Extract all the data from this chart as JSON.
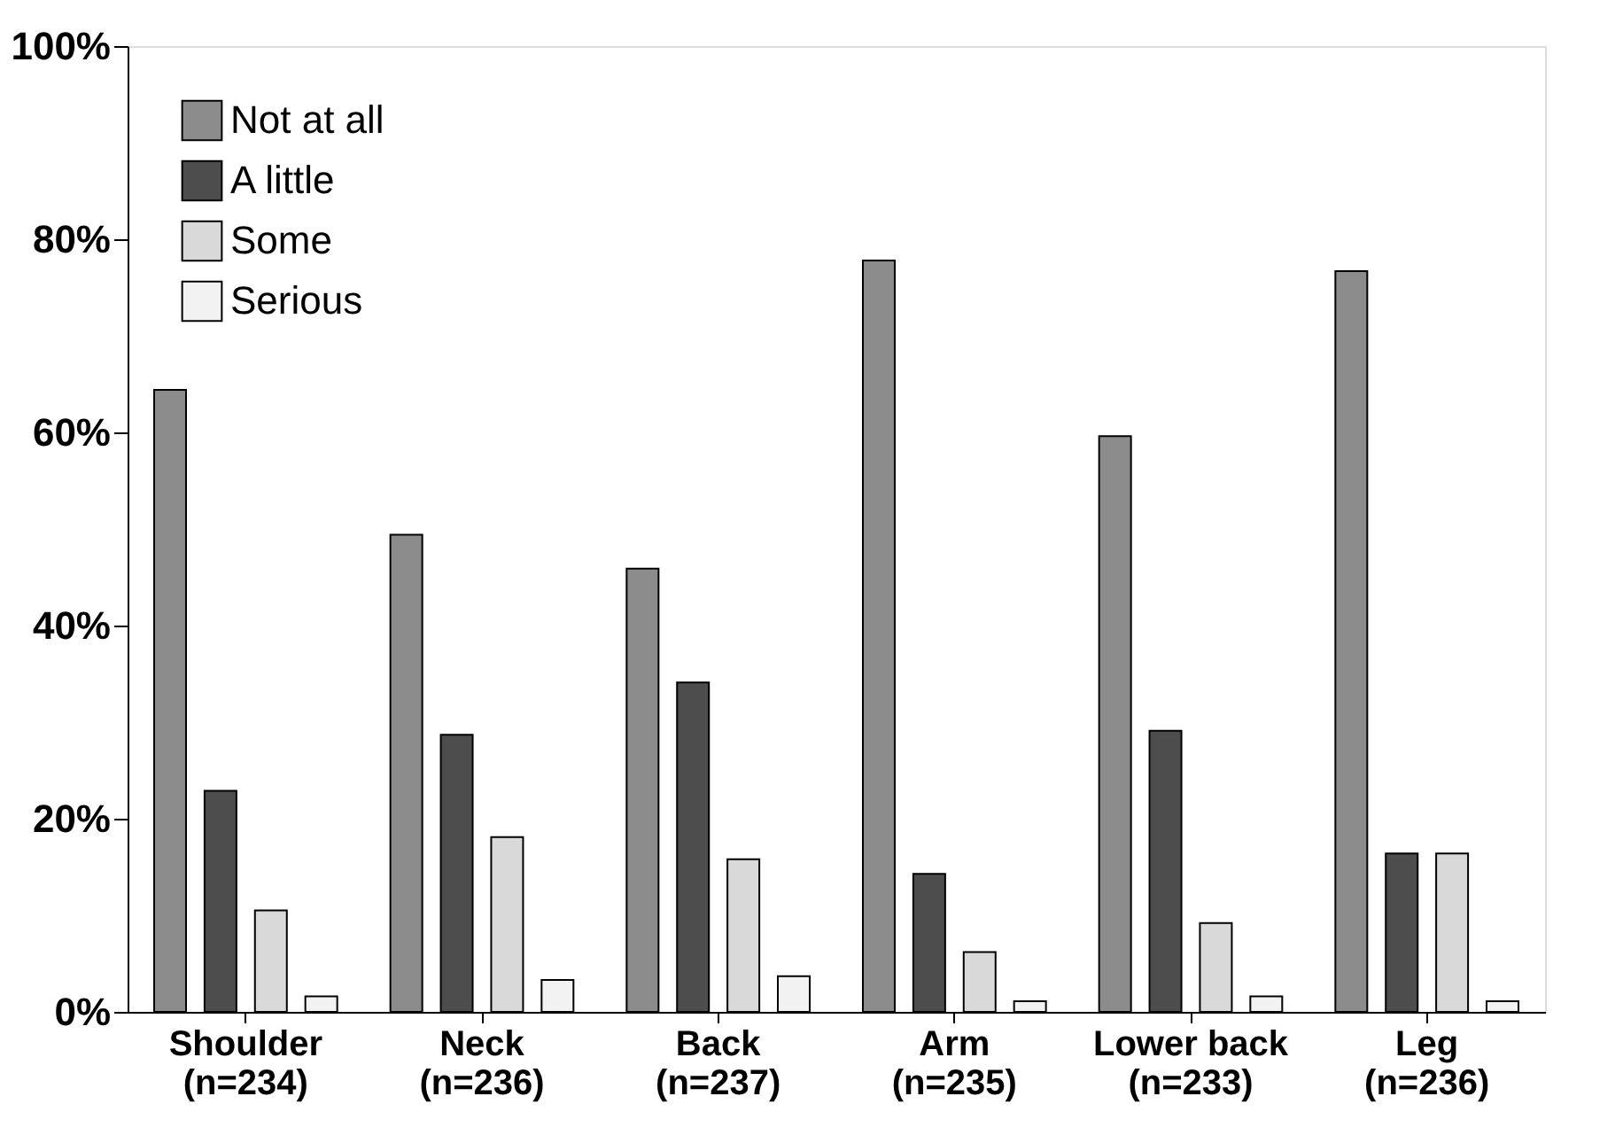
{
  "chart_data": {
    "type": "bar",
    "categories": [
      "Shoulder\n(n=234)",
      "Neck\n(n=236)",
      "Back\n(n=237)",
      "Arm\n(n=235)",
      "Lower back\n(n=233)",
      "Leg\n(n=236)"
    ],
    "series": [
      {
        "name": "Not at all",
        "color": "#8c8c8c",
        "values": [
          64.4,
          49.4,
          45.9,
          77.8,
          59.6,
          76.7
        ]
      },
      {
        "name": "A little",
        "color": "#4d4d4d",
        "values": [
          22.9,
          28.7,
          34.1,
          14.3,
          29.1,
          16.4
        ]
      },
      {
        "name": "Some",
        "color": "#d9d9d9",
        "values": [
          10.5,
          18.1,
          15.8,
          6.2,
          9.2,
          16.4
        ]
      },
      {
        "name": "Serious",
        "color": "#f2f2f2",
        "values": [
          1.6,
          3.3,
          3.7,
          1.1,
          1.6,
          1.1
        ]
      }
    ],
    "ylim": [
      0,
      100
    ],
    "yticks": [
      {
        "value": 0,
        "label": "0%"
      },
      {
        "value": 20,
        "label": "20%"
      },
      {
        "value": 40,
        "label": "40%"
      },
      {
        "value": 60,
        "label": "60%"
      },
      {
        "value": 80,
        "label": "80%"
      },
      {
        "value": 100,
        "label": "100%"
      }
    ],
    "grid": false,
    "legend": "top left"
  }
}
